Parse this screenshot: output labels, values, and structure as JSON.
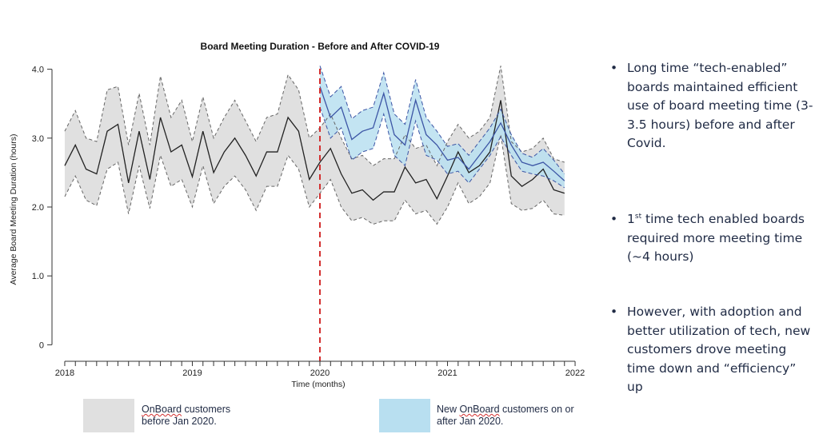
{
  "chart_data": {
    "type": "line",
    "title": "Board Meeting Duration - Before and After COVID-19",
    "xlabel": "Time (months)",
    "ylabel": "Average Board Meeting Duration (hours)",
    "x_ticks": [
      "2018",
      "2019",
      "2020",
      "2021",
      "2022"
    ],
    "y_ticks": [
      "0",
      "1.0",
      "2.0",
      "3.0",
      "4.0"
    ],
    "xlim": [
      2017.9,
      2022.1
    ],
    "ylim": [
      -0.1,
      4.1
    ],
    "vline": {
      "x": 2020.0,
      "color": "#d32f2f",
      "style": "dashed"
    },
    "series": [
      {
        "name": "OnBoard customers before Jan 2020.",
        "color": "#222222",
        "band_color": "#e0e0e0",
        "x": [
          2018.0,
          2018.083,
          2018.167,
          2018.25,
          2018.333,
          2018.417,
          2018.5,
          2018.583,
          2018.667,
          2018.75,
          2018.833,
          2018.917,
          2019.0,
          2019.083,
          2019.167,
          2019.25,
          2019.333,
          2019.417,
          2019.5,
          2019.583,
          2019.667,
          2019.75,
          2019.833,
          2019.917,
          2020.0,
          2020.083,
          2020.167,
          2020.25,
          2020.333,
          2020.417,
          2020.5,
          2020.583,
          2020.667,
          2020.75,
          2020.833,
          2020.917,
          2021.0,
          2021.083,
          2021.167,
          2021.25,
          2021.333,
          2021.417,
          2021.5,
          2021.583,
          2021.667,
          2021.75,
          2021.833,
          2021.917
        ],
        "values": [
          2.6,
          2.9,
          2.55,
          2.48,
          3.1,
          3.2,
          2.35,
          3.1,
          2.4,
          3.3,
          2.8,
          2.9,
          2.44,
          3.1,
          2.5,
          2.8,
          3.0,
          2.75,
          2.45,
          2.8,
          2.8,
          3.3,
          3.1,
          2.4,
          2.65,
          2.85,
          2.48,
          2.2,
          2.25,
          2.1,
          2.22,
          2.22,
          2.58,
          2.35,
          2.4,
          2.12,
          2.45,
          2.8,
          2.5,
          2.6,
          2.8,
          3.55,
          2.45,
          2.3,
          2.4,
          2.55,
          2.25,
          2.2
        ],
        "upper": [
          3.1,
          3.4,
          3.0,
          2.95,
          3.7,
          3.75,
          2.9,
          3.65,
          2.9,
          3.9,
          3.3,
          3.55,
          2.95,
          3.6,
          3.0,
          3.3,
          3.55,
          3.25,
          2.95,
          3.3,
          3.35,
          3.92,
          3.7,
          3.0,
          3.15,
          3.35,
          3.0,
          2.7,
          2.75,
          2.6,
          2.7,
          2.7,
          3.05,
          2.85,
          2.9,
          2.6,
          2.95,
          3.2,
          3.0,
          3.1,
          3.3,
          4.05,
          2.95,
          2.8,
          2.85,
          3.0,
          2.7,
          2.65
        ],
        "lower": [
          2.15,
          2.45,
          2.1,
          2.02,
          2.55,
          2.65,
          1.9,
          2.6,
          1.98,
          2.75,
          2.3,
          2.4,
          2.0,
          2.6,
          2.05,
          2.3,
          2.45,
          2.25,
          1.95,
          2.3,
          2.3,
          2.75,
          2.55,
          2.0,
          2.2,
          2.4,
          2.0,
          1.8,
          1.85,
          1.75,
          1.8,
          1.8,
          2.1,
          1.9,
          1.95,
          1.75,
          2.0,
          2.35,
          2.05,
          2.15,
          2.35,
          3.05,
          2.05,
          1.95,
          1.98,
          2.1,
          1.9,
          1.88
        ]
      },
      {
        "name": "New OnBoard customers on or after Jan 2020.",
        "color": "#3c55a5",
        "band_color": "#b8dff0",
        "x": [
          2020.0,
          2020.083,
          2020.167,
          2020.25,
          2020.333,
          2020.417,
          2020.5,
          2020.583,
          2020.667,
          2020.75,
          2020.833,
          2020.917,
          2021.0,
          2021.083,
          2021.167,
          2021.25,
          2021.333,
          2021.417,
          2021.5,
          2021.583,
          2021.667,
          2021.75,
          2021.833,
          2021.917
        ],
        "values": [
          3.75,
          3.3,
          3.45,
          2.98,
          3.1,
          3.15,
          3.65,
          3.05,
          2.9,
          3.55,
          3.05,
          2.9,
          2.68,
          2.72,
          2.55,
          2.75,
          2.95,
          3.22,
          2.9,
          2.65,
          2.6,
          2.65,
          2.52,
          2.38
        ],
        "upper": [
          4.05,
          3.6,
          3.75,
          3.28,
          3.4,
          3.45,
          3.95,
          3.35,
          3.2,
          3.85,
          3.3,
          3.1,
          2.88,
          2.92,
          2.75,
          2.95,
          3.15,
          3.42,
          3.05,
          2.78,
          2.72,
          2.85,
          2.68,
          2.48
        ],
        "lower": [
          3.45,
          3.0,
          3.15,
          2.68,
          2.8,
          2.85,
          3.35,
          2.75,
          2.6,
          3.25,
          2.75,
          2.68,
          2.48,
          2.52,
          2.35,
          2.55,
          2.75,
          3.02,
          2.75,
          2.52,
          2.48,
          2.45,
          2.38,
          2.28
        ]
      }
    ]
  },
  "legend": [
    {
      "line1_brand": "OnBoard",
      "line1_rest": " customers",
      "line2": "before Jan 2020.",
      "color": "#e0e0e0"
    },
    {
      "line1_pre": "New ",
      "line1_brand": "OnBoard",
      "line1_rest": " customers on or",
      "line2": "after Jan 2020.",
      "color": "#b8dff0"
    }
  ],
  "bullets": {
    "b1": "Long time “tech-enabled” boards maintained efficient use of board meeting time (3-3.5 hours) before and after Covid.",
    "b2_pre": "1",
    "b2_sup": "st",
    "b2_rest": " time tech enabled boards required more meeting time (~4 hours)",
    "b3": "However, with adoption and better utilization of tech, new customers drove meeting time down and “efficiency” up"
  }
}
